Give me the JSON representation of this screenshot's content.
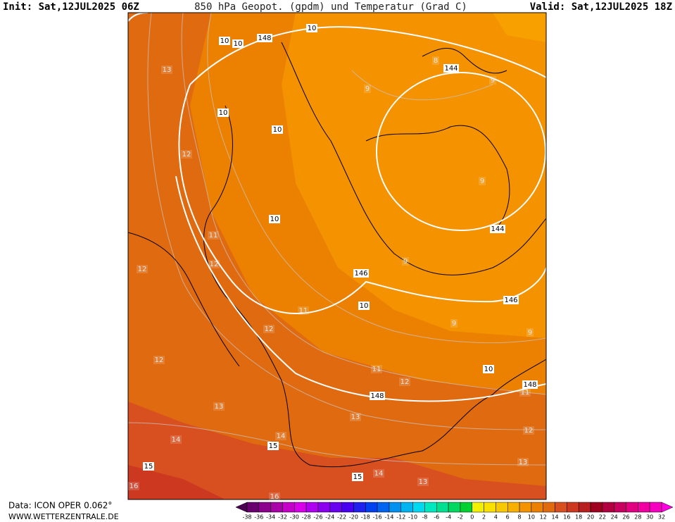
{
  "header": {
    "init": "Init: Sat,12JUL2025 06Z",
    "title": "850 hPa Geopot. (gpdm) und Temperatur (Grad C)",
    "valid": "Valid: Sat,12JUL2025 18Z"
  },
  "map": {
    "geopotential_labels": [
      148,
      10,
      10,
      10,
      144,
      10,
      10,
      10,
      144,
      146,
      10,
      146,
      10,
      148,
      148,
      15,
      15,
      15
    ],
    "temperature_labels": [
      13,
      8,
      9,
      9,
      12,
      9,
      11,
      12,
      12,
      9,
      11,
      12,
      9,
      9,
      12,
      11,
      12,
      11,
      13,
      13,
      12,
      14,
      14,
      13,
      14,
      13,
      16,
      16
    ]
  },
  "legend": {
    "ticks": [
      -38,
      -36,
      -34,
      -32,
      -30,
      -28,
      -26,
      -24,
      -22,
      -20,
      -18,
      -16,
      -14,
      -12,
      -10,
      -8,
      -6,
      -4,
      -2,
      0,
      2,
      4,
      6,
      8,
      10,
      12,
      14,
      16,
      18,
      20,
      22,
      24,
      26,
      28,
      30,
      32
    ],
    "colors": [
      "#4b0050",
      "#6a006f",
      "#8c008c",
      "#a800a8",
      "#c400c8",
      "#d800e8",
      "#b000f0",
      "#8c00f0",
      "#6a00f0",
      "#4800f0",
      "#2020f0",
      "#0040f0",
      "#0064f0",
      "#0090f0",
      "#00b4f0",
      "#00d8f0",
      "#00e8c0",
      "#00e090",
      "#00d860",
      "#00d030",
      "#f0f000",
      "#f8e000",
      "#f8c800",
      "#f8b000",
      "#f49200",
      "#ec8000",
      "#e06a10",
      "#d85020",
      "#cc3820",
      "#b82020",
      "#a00020",
      "#b00040",
      "#c80060",
      "#e00080",
      "#f000a0",
      "#f800c0",
      "#ff00e0"
    ]
  },
  "footer": {
    "source": "Data: ICON OPER 0.062°",
    "website": "WWW.WETTERZENTRALE.DE"
  }
}
